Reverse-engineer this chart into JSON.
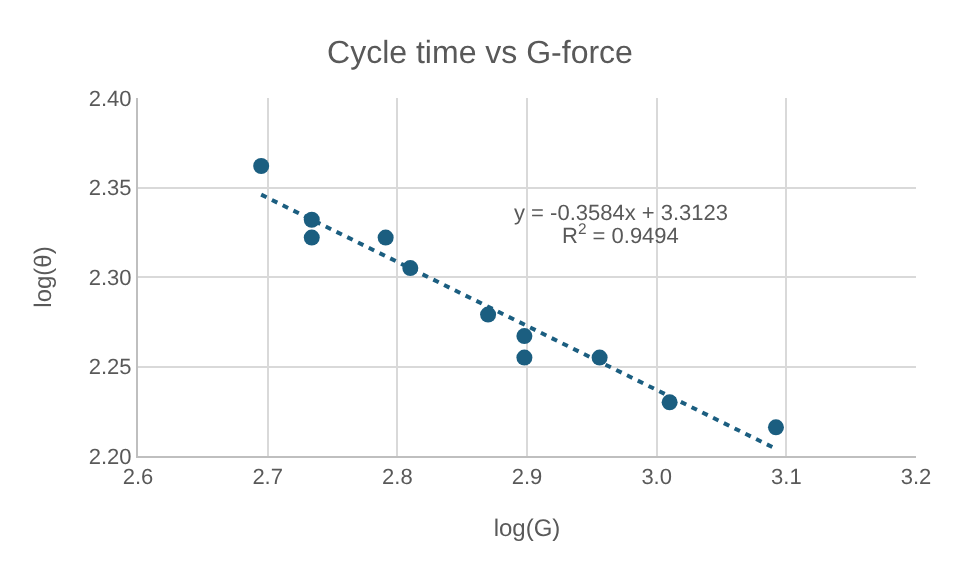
{
  "chart_data": {
    "type": "scatter",
    "title": "Cycle time vs G-force",
    "xlabel": "log(G)",
    "ylabel": "log(θ)",
    "series": [
      {
        "color": "#1b5e80",
        "x": [
          2.695,
          2.734,
          2.734,
          2.791,
          2.81,
          2.87,
          2.898,
          2.898,
          2.956,
          3.01,
          3.092
        ],
        "values": [
          2.362,
          2.332,
          2.322,
          2.322,
          2.305,
          2.279,
          2.267,
          2.255,
          2.255,
          2.23,
          2.216
        ],
        "marker": "circle"
      },
      {
        "type": "line",
        "color": "#1b5e80",
        "x": [
          2.695,
          3.092
        ],
        "values": [
          2.346,
          2.204
        ],
        "line_style": "dotted",
        "marker": "none"
      }
    ],
    "annotations": [
      "y = -0.3584x + 3.3123",
      "R$^{2}$ = 0.9494"
    ],
    "xlim": [
      2.6,
      3.2
    ],
    "xticks": [
      2.6,
      2.7,
      2.8,
      2.9,
      {
        "value": 3.0,
        "label": "3.0"
      },
      3.1,
      3.2
    ],
    "ylim": [
      2.2,
      2.4
    ],
    "yticks": [
      {
        "value": 2.2,
        "label": "2.20"
      },
      {
        "value": 2.25,
        "label": "2.25"
      },
      {
        "value": 2.3,
        "label": "2.30"
      },
      {
        "value": 2.35,
        "label": "2.35"
      },
      {
        "value": 2.4,
        "label": "2.40"
      }
    ],
    "grid": true
  }
}
